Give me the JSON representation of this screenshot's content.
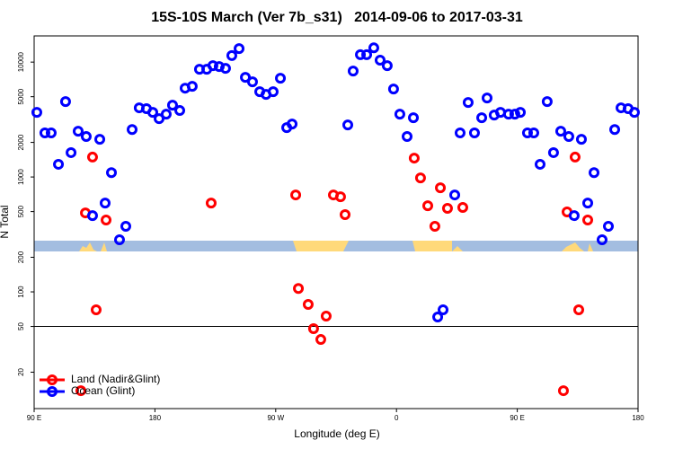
{
  "chart_data": {
    "type": "scatter",
    "title": "15S-10S March (Ver 7b_s31)   2014-09-06 to 2017-03-31",
    "x_label": "Longitude (deg E)",
    "y_label": "N Total",
    "log_y": true,
    "xlim": [
      90,
      540
    ],
    "ylim": [
      9.64,
      16900
    ],
    "xticks": [
      {
        "value": 90,
        "label": "90 E"
      },
      180,
      {
        "value": 270,
        "label": "90 W"
      },
      {
        "value": 360,
        "label": "0"
      },
      {
        "value": 450,
        "label": "90 E"
      },
      {
        "value": 540,
        "label": "180"
      }
    ],
    "yticks": [
      20,
      50,
      100,
      200,
      500,
      1000,
      2000,
      5000,
      10000
    ],
    "hlines": [
      50
    ],
    "legend": "bottom-left",
    "series": [
      {
        "name": "Land (Nadir&Glint)",
        "color": "#ff0000",
        "x": [
          124.8,
          128.2,
          133.5,
          136.2,
          143.6,
          221.9,
          284.9,
          286.9,
          294.2,
          298.2,
          303.6,
          307.6,
          313,
          318.3,
          321.7,
          373.2,
          377.9,
          383.3,
          388.6,
          392.7,
          398,
          409.4,
          484.4,
          487.1,
          493.1,
          495.8,
          502.5
        ],
        "values": [
          13.8,
          487,
          1490,
          69.8,
          422,
          593,
          698,
          107,
          77.8,
          47.8,
          38.5,
          61.5,
          698,
          673,
          470,
          1460,
          982,
          562,
          372,
          806,
          533,
          543,
          13.8,
          496,
          1490,
          69.8,
          422
        ]
      },
      {
        "name": "Ocean (Glint)",
        "color": "#0000ff",
        "x": [
          92,
          98,
          102.7,
          108.1,
          113.4,
          117.5,
          122.8,
          128.8,
          133.5,
          138.9,
          142.9,
          147.6,
          153.6,
          158.3,
          163,
          168.3,
          173.7,
          178.4,
          183.1,
          188.4,
          193.1,
          198.5,
          202.5,
          207.8,
          213.2,
          218.6,
          223.2,
          227.9,
          232.6,
          237.3,
          242.7,
          247.4,
          252.7,
          258.1,
          262.8,
          268.1,
          273.5,
          278.2,
          282.2,
          323.7,
          327.7,
          333.1,
          337.8,
          343.1,
          347.8,
          353.1,
          357.8,
          362.5,
          367.9,
          372.6,
          390.7,
          394.7,
          403.4,
          407.4,
          413.4,
          418.1,
          423.5,
          427.5,
          432.8,
          437.5,
          443.5,
          448.2,
          452.3,
          457.6,
          462.3,
          467,
          472.3,
          477,
          482.4,
          488.4,
          492.4,
          497.8,
          502.5,
          507.2,
          513.2,
          517.9,
          522.6,
          527.3,
          532.6,
          537.3
        ],
        "values": [
          3650,
          2420,
          2420,
          1290,
          4530,
          1630,
          2500,
          2250,
          461,
          2130,
          593,
          1090,
          284,
          372,
          2590,
          4000,
          3930,
          3650,
          3220,
          3520,
          4220,
          3790,
          5930,
          6150,
          8660,
          8660,
          9310,
          9140,
          8820,
          11400,
          13100,
          7370,
          6730,
          5520,
          5230,
          5520,
          7230,
          2690,
          2890,
          2840,
          8350,
          11600,
          11600,
          13300,
          10400,
          9310,
          5830,
          3520,
          2250,
          3280,
          60.4,
          69.8,
          698,
          2420,
          4450,
          2420,
          3280,
          4870,
          3460,
          3650,
          3520,
          3520,
          3650,
          2420,
          2420,
          1290,
          4530,
          1630,
          2500,
          2250,
          461,
          2130,
          593,
          1090,
          284,
          372,
          2590,
          4000,
          3930,
          3650
        ]
      }
    ]
  }
}
